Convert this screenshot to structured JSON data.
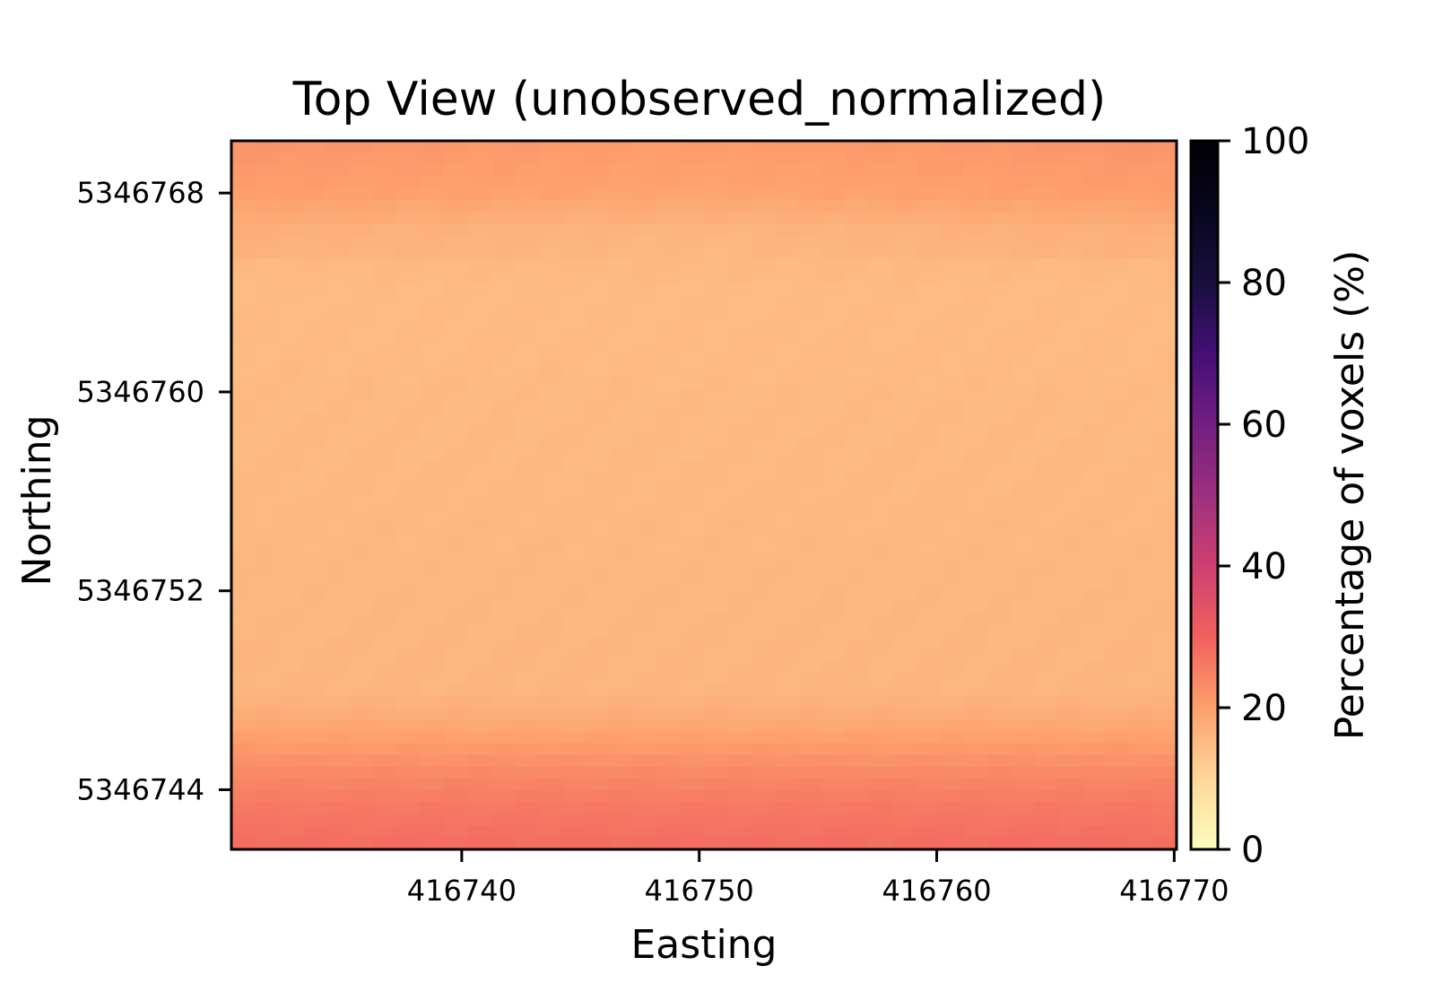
{
  "chart_data": {
    "type": "heatmap",
    "title": "Top View (unobserved_normalized)",
    "xlabel": "Easting",
    "ylabel": "Northing",
    "xlim": [
      416730.3,
      416770.1
    ],
    "ylim": [
      5346741.6,
      5346770.1
    ],
    "x_ticks": [
      416740,
      416750,
      416760,
      416770
    ],
    "x_tick_labels": [
      "416740",
      "416750",
      "416760",
      "416770"
    ],
    "y_ticks": [
      5346744,
      5346752,
      5346760,
      5346768
    ],
    "y_tick_labels": [
      "5346744",
      "5346752",
      "5346760",
      "5346768"
    ],
    "colormap": "magma_r",
    "colorbar": {
      "label": "Percentage of voxels (%)",
      "range": [
        0,
        100
      ],
      "ticks": [
        0,
        20,
        40,
        60,
        80,
        100
      ],
      "tick_labels": [
        "0",
        "20",
        "40",
        "60",
        "80",
        "100"
      ]
    },
    "grid": false,
    "value_profile_by_northing": {
      "description_units": "percent",
      "northing": [
        5346741.6,
        5346743.0,
        5346744.5,
        5346746.0,
        5346747.0,
        5346748.0,
        5346756.0,
        5346764.0,
        5346766.5,
        5346768.0,
        5346770.1
      ],
      "value": [
        28,
        26.5,
        24,
        20,
        17.5,
        16,
        15.5,
        15,
        16,
        19,
        20.5
      ]
    },
    "x_variation": {
      "note": "slightly higher values near x edges at top",
      "northing_band_top": [
        5346765.5,
        5346770.1
      ]
    }
  }
}
